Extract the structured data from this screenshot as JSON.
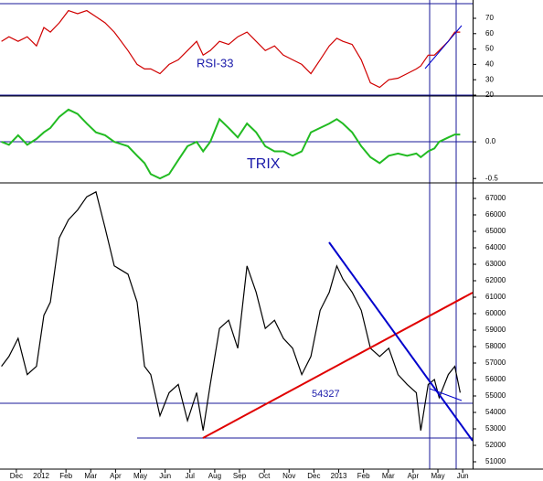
{
  "chart_data": [
    {
      "type": "line",
      "annotation": "RSI-33",
      "color": "#d00000",
      "x": [
        -0.6,
        -0.3,
        0.07,
        0.44,
        0.81,
        1.11,
        1.37,
        1.73,
        2.1,
        2.47,
        2.84,
        3.21,
        3.58,
        3.95,
        4.5,
        4.87,
        5.17,
        5.42,
        5.79,
        6.16,
        6.53,
        6.9,
        7.27,
        7.53,
        7.82,
        8.19,
        8.56,
        8.93,
        9.3,
        9.67,
        10.04,
        10.41,
        10.77,
        11.14,
        11.51,
        11.88,
        12.25,
        12.62,
        12.92,
        13.17,
        13.54,
        13.91,
        14.28,
        14.65,
        15.02,
        15.39,
        15.76,
        16.13,
        16.31,
        16.61,
        16.86,
        17.05,
        17.42,
        17.68,
        17.9
      ],
      "values": [
        55,
        58,
        55,
        58,
        52,
        64,
        61,
        67,
        75,
        73,
        75,
        71,
        67,
        61,
        49,
        40,
        37,
        37,
        34,
        40,
        43,
        49,
        55,
        46,
        49,
        55,
        53,
        58,
        61,
        55,
        49,
        52,
        46,
        43,
        40,
        34,
        43,
        52,
        57,
        55,
        53,
        43,
        28,
        25,
        30,
        31,
        34,
        37,
        39,
        46,
        46,
        49,
        55,
        61,
        61
      ],
      "xlim": [
        -0.66,
        18.4
      ],
      "ylim": [
        19.4,
        81.9
      ],
      "yticks": [
        20,
        30,
        40,
        50,
        60,
        70
      ]
    },
    {
      "type": "line",
      "annotation": "TRIX",
      "color": "#22bb22",
      "x": [
        -0.6,
        -0.3,
        0.07,
        0.44,
        0.81,
        1.11,
        1.37,
        1.73,
        2.1,
        2.47,
        2.84,
        3.21,
        3.58,
        3.95,
        4.5,
        4.87,
        5.17,
        5.42,
        5.79,
        6.16,
        6.53,
        6.9,
        7.27,
        7.53,
        7.82,
        8.19,
        8.56,
        8.93,
        9.3,
        9.67,
        10.04,
        10.41,
        10.77,
        11.14,
        11.51,
        11.88,
        12.25,
        12.62,
        12.92,
        13.17,
        13.54,
        13.91,
        14.28,
        14.65,
        15.02,
        15.39,
        15.76,
        16.13,
        16.31,
        16.61,
        16.86,
        17.05,
        17.42,
        17.68,
        17.9
      ],
      "values": [
        0,
        -0.04,
        0.09,
        -0.04,
        0.04,
        0.13,
        0.19,
        0.34,
        0.44,
        0.38,
        0.25,
        0.13,
        0.09,
        0,
        -0.06,
        -0.19,
        -0.29,
        -0.44,
        -0.5,
        -0.44,
        -0.25,
        -0.06,
        0,
        -0.13,
        0,
        0.31,
        0.19,
        0.06,
        0.25,
        0.13,
        -0.06,
        -0.13,
        -0.13,
        -0.19,
        -0.13,
        0.13,
        0.19,
        0.25,
        0.31,
        0.25,
        0.13,
        -0.06,
        -0.21,
        -0.29,
        -0.19,
        -0.16,
        -0.19,
        -0.16,
        -0.21,
        -0.13,
        -0.09,
        0,
        0.06,
        0.1,
        0.1
      ],
      "xlim": [
        -0.66,
        18.4
      ],
      "ylim": [
        -0.56,
        0.625
      ],
      "yticks": [
        {
          "value": 0,
          "label": "0.0"
        },
        -0.5
      ]
    },
    {
      "type": "line",
      "annotation": "54327",
      "color": "#000000",
      "x": [
        -0.6,
        -0.3,
        0.07,
        0.44,
        0.81,
        1.11,
        1.37,
        1.73,
        2.1,
        2.47,
        2.84,
        3.21,
        3.58,
        3.95,
        4.5,
        4.87,
        5.17,
        5.42,
        5.79,
        6.16,
        6.53,
        6.9,
        7.27,
        7.53,
        7.82,
        8.19,
        8.56,
        8.93,
        9.3,
        9.67,
        10.04,
        10.41,
        10.77,
        11.14,
        11.51,
        11.88,
        12.25,
        12.62,
        12.92,
        13.17,
        13.54,
        13.91,
        14.28,
        14.65,
        15.02,
        15.39,
        15.76,
        16.13,
        16.31,
        16.61,
        16.86,
        17.05,
        17.42,
        17.68,
        17.9
      ],
      "values": [
        56800,
        57400,
        58500,
        56300,
        56800,
        59900,
        60700,
        64600,
        65700,
        66300,
        67100,
        67400,
        65200,
        62900,
        62400,
        60700,
        56800,
        56300,
        53800,
        55200,
        55700,
        53500,
        55200,
        52900,
        55700,
        59100,
        59600,
        57900,
        62900,
        61300,
        59100,
        59600,
        58500,
        57900,
        56300,
        57400,
        60200,
        61300,
        62900,
        62100,
        61300,
        60200,
        57900,
        57400,
        57900,
        56300,
        55700,
        55200,
        52900,
        55700,
        56000,
        54900,
        56300,
        56800,
        55200
      ],
      "xlim": [
        -0.66,
        18.4
      ],
      "ylim": [
        50556,
        67944
      ],
      "yticks": [
        51000,
        52000,
        53000,
        54000,
        55000,
        56000,
        57000,
        58000,
        59000,
        60000,
        61000,
        62000,
        63000,
        64000,
        65000,
        66000,
        67000
      ],
      "xticks": [
        {
          "value": 0,
          "label": "Dec"
        },
        {
          "value": 1,
          "label": "2012"
        },
        {
          "value": 2,
          "label": "Feb"
        },
        {
          "value": 3,
          "label": "Mar"
        },
        {
          "value": 4,
          "label": "Apr"
        },
        {
          "value": 5,
          "label": "May"
        },
        {
          "value": 6,
          "label": "Jun"
        },
        {
          "value": 7,
          "label": "Jul"
        },
        {
          "value": 8,
          "label": "Aug"
        },
        {
          "value": 9,
          "label": "Sep"
        },
        {
          "value": 10,
          "label": "Oct"
        },
        {
          "value": 11,
          "label": "Nov"
        },
        {
          "value": 12,
          "label": "Dec"
        },
        {
          "value": 13,
          "label": "2013"
        },
        {
          "value": 14,
          "label": "Feb"
        },
        {
          "value": 15,
          "label": "Mar"
        },
        {
          "value": 16,
          "label": "Apr"
        },
        {
          "value": 17,
          "label": "May"
        },
        {
          "value": 18,
          "label": "Jun"
        }
      ]
    }
  ]
}
